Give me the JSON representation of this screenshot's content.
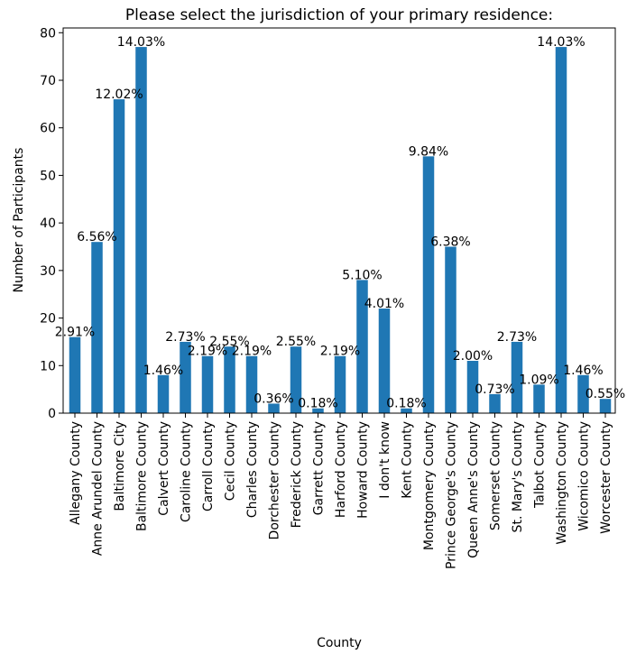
{
  "chart_data": {
    "type": "bar",
    "title": "Please select the jurisdiction of your primary residence:",
    "xlabel": "County",
    "ylabel": "Number of Participants",
    "ylim": [
      0,
      81
    ],
    "yticks": [
      0,
      10,
      20,
      30,
      40,
      50,
      60,
      70,
      80
    ],
    "grid": false,
    "categories": [
      "Allegany County",
      "Anne Arundel County",
      "Baltimore City",
      "Baltimore County",
      "Calvert County",
      "Caroline County",
      "Carroll County",
      "Cecil County",
      "Charles County",
      "Dorchester County",
      "Frederick County",
      "Garrett County",
      "Harford County",
      "Howard County",
      "I don't know",
      "Kent County",
      "Montgomery County",
      "Prince George's County",
      "Queen Anne's County",
      "Somerset County",
      "St. Mary's County",
      "Talbot County",
      "Washington County",
      "Wicomico County",
      "Worcester County"
    ],
    "values": [
      16,
      36,
      66,
      77,
      8,
      15,
      12,
      14,
      12,
      2,
      14,
      1,
      12,
      28,
      22,
      1,
      54,
      35,
      11,
      4,
      15,
      6,
      77,
      8,
      3
    ],
    "labels": [
      "2.91%",
      "6.56%",
      "12.02%",
      "14.03%",
      "1.46%",
      "2.73%",
      "2.19%",
      "2.55%",
      "2.19%",
      "0.36%",
      "2.55%",
      "0.18%",
      "2.19%",
      "5.10%",
      "4.01%",
      "0.18%",
      "9.84%",
      "6.38%",
      "2.00%",
      "0.73%",
      "2.73%",
      "1.09%",
      "14.03%",
      "1.46%",
      "0.55%"
    ],
    "bar_color": "#1f77b4"
  }
}
